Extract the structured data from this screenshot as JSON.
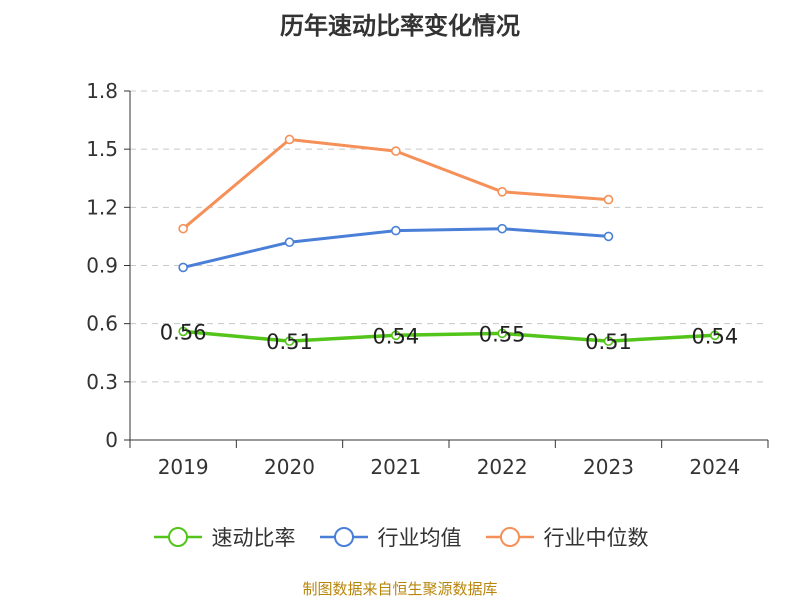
{
  "chart_data": {
    "type": "line",
    "title": "历年速动比率变化情况",
    "categories": [
      "2019",
      "2020",
      "2021",
      "2022",
      "2023",
      "2024"
    ],
    "y_ticks": [
      "0",
      "0.3",
      "0.6",
      "0.9",
      "1.2",
      "1.5",
      "1.8"
    ],
    "ylim": [
      0,
      1.8
    ],
    "grid": true,
    "series": [
      {
        "key": "quick_ratio",
        "name": "速动比率",
        "color": "#52c41a",
        "values": [
          0.56,
          0.51,
          0.54,
          0.55,
          0.51,
          0.54
        ],
        "labels": [
          "0.56",
          "0.51",
          "0.54",
          "0.55",
          "0.51",
          "0.54"
        ]
      },
      {
        "key": "industry_mean",
        "name": "行业均值",
        "color": "#4a7fd8",
        "values": [
          0.89,
          1.02,
          1.08,
          1.09,
          1.05,
          null
        ]
      },
      {
        "key": "industry_median",
        "name": "行业中位数",
        "color": "#f59058",
        "values": [
          1.09,
          1.55,
          1.49,
          1.28,
          1.24,
          null
        ]
      }
    ],
    "legend_position": "bottom",
    "source": "制图数据来自恒生聚源数据库"
  }
}
